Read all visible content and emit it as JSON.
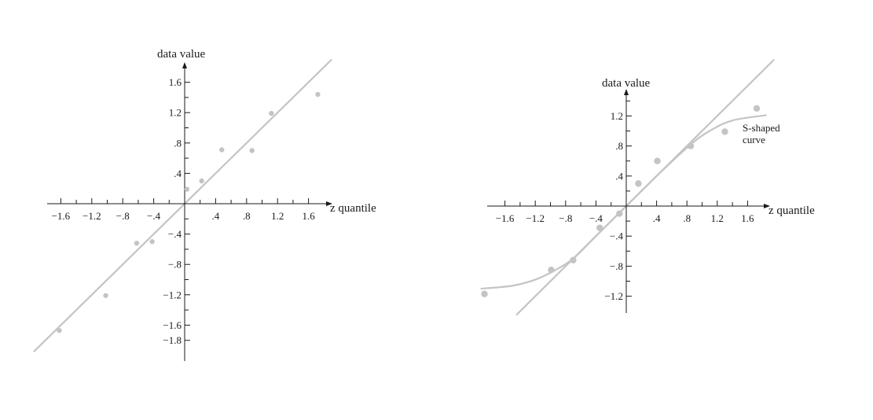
{
  "chart_data": [
    {
      "type": "scatter",
      "title": "",
      "xlabel": "z quantile",
      "ylabel": "data value",
      "xlim": [
        -2.0,
        1.95
      ],
      "ylim": [
        -1.85,
        1.9
      ],
      "grid": false,
      "x_ticks": [
        -1.6,
        -1.2,
        -0.8,
        -0.4,
        0.4,
        0.8,
        1.2,
        1.6
      ],
      "x_tick_labels": [
        "−1.6",
        "−1.2",
        "−.8",
        "−.4",
        ".4",
        ".8",
        "1.2",
        "1.6"
      ],
      "y_ticks": [
        1.6,
        1.2,
        0.8,
        0.4,
        -0.4,
        -0.8,
        -1.2,
        -1.6,
        -1.8
      ],
      "y_tick_labels": [
        "1.6",
        "1.2",
        ".8",
        ".4",
        "−.4",
        "−.8",
        "−1.2",
        "−1.6",
        "−1.8"
      ],
      "x_minor_step": 0.2,
      "y_minor_step": 0.2,
      "points": [
        {
          "x": -1.62,
          "y": -1.67
        },
        {
          "x": -1.02,
          "y": -1.21
        },
        {
          "x": -0.62,
          "y": -0.52
        },
        {
          "x": -0.42,
          "y": -0.5
        },
        {
          "x": 0.03,
          "y": 0.19
        },
        {
          "x": 0.22,
          "y": 0.3
        },
        {
          "x": 0.48,
          "y": 0.71
        },
        {
          "x": 0.87,
          "y": 0.7
        },
        {
          "x": 1.12,
          "y": 1.19
        },
        {
          "x": 1.72,
          "y": 1.44
        }
      ],
      "reference_line": {
        "slope": 1,
        "intercept": 0,
        "x_range": [
          -1.95,
          1.9
        ]
      }
    },
    {
      "type": "scatter",
      "title": "",
      "xlabel": "z quantile",
      "ylabel": "data value",
      "xlim": [
        -1.95,
        1.95
      ],
      "ylim": [
        -1.4,
        1.5
      ],
      "grid": false,
      "x_ticks": [
        -1.6,
        -1.2,
        -0.8,
        -0.4,
        0.4,
        0.8,
        1.2,
        1.6
      ],
      "x_tick_labels": [
        "−1.6",
        "−1.2",
        "−.8",
        "−.4",
        ".4",
        ".8",
        "1.2",
        "1.6"
      ],
      "y_ticks": [
        1.2,
        0.8,
        0.4,
        -0.4,
        -0.8,
        -1.2
      ],
      "y_tick_labels": [
        "1.2",
        ".8",
        ".4",
        "−.4",
        "−.8",
        "−1.2"
      ],
      "x_minor_step": 0.2,
      "y_minor_step": 0.2,
      "points": [
        {
          "x": -1.87,
          "y": -1.17
        },
        {
          "x": -0.99,
          "y": -0.85
        },
        {
          "x": -0.7,
          "y": -0.72
        },
        {
          "x": -0.35,
          "y": -0.29
        },
        {
          "x": -0.09,
          "y": -0.1
        },
        {
          "x": 0.16,
          "y": 0.3
        },
        {
          "x": 0.41,
          "y": 0.6
        },
        {
          "x": 0.85,
          "y": 0.8
        },
        {
          "x": 1.3,
          "y": 0.99
        },
        {
          "x": 1.72,
          "y": 1.3
        }
      ],
      "reference_line": {
        "slope": 1,
        "intercept": 0,
        "x_range": [
          -1.45,
          1.95
        ]
      },
      "curve": {
        "name": "S-shaped curve",
        "points": [
          {
            "x": -1.92,
            "y": -1.1
          },
          {
            "x": -1.5,
            "y": -1.06
          },
          {
            "x": -1.2,
            "y": -0.98
          },
          {
            "x": -0.95,
            "y": -0.86
          },
          {
            "x": -0.7,
            "y": -0.7
          },
          {
            "x": -0.4,
            "y": -0.4
          },
          {
            "x": 0.0,
            "y": 0.0
          },
          {
            "x": 0.4,
            "y": 0.4
          },
          {
            "x": 0.85,
            "y": 0.82
          },
          {
            "x": 1.1,
            "y": 1.0
          },
          {
            "x": 1.4,
            "y": 1.14
          },
          {
            "x": 1.85,
            "y": 1.21
          }
        ]
      },
      "annotation": {
        "lines": [
          "S-shaped",
          "curve"
        ]
      }
    }
  ],
  "colors": {
    "axis": "#1a1a1a",
    "marks": "#c4c4c4"
  }
}
